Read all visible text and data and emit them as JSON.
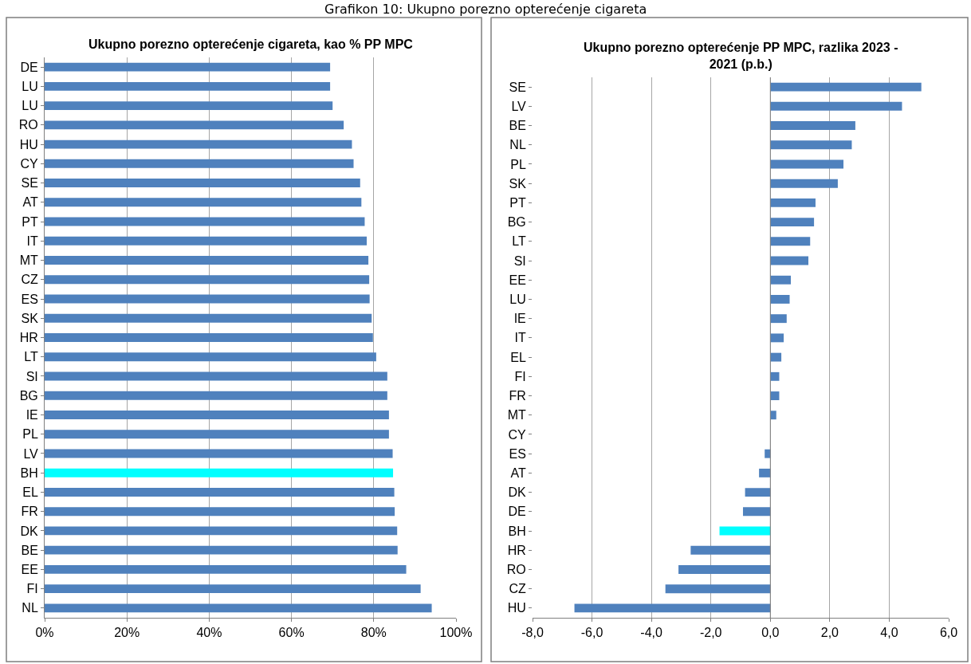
{
  "chart_data": [
    {
      "type": "bar",
      "orientation": "horizontal",
      "title": "Ukupno porezno opterećenje cigareta, kao % PP MPC",
      "annotations": [
        "Grafikon 10: Ukupno porezno opterećenje cigareta"
      ],
      "categories": [
        "DE",
        "LU",
        "LU",
        "RO",
        "HU",
        "CY",
        "SE",
        "AT",
        "PT",
        "IT",
        "MT",
        "CZ",
        "ES",
        "SK",
        "HR",
        "LT",
        "SI",
        "BG",
        "IE",
        "PL",
        "LV",
        "BH",
        "EL",
        "FR",
        "DK",
        "BE",
        "EE",
        "FI",
        "NL"
      ],
      "values": [
        69.4,
        69.4,
        70.0,
        72.7,
        74.7,
        75.1,
        76.7,
        77.0,
        77.8,
        78.3,
        78.7,
        78.9,
        79.0,
        79.5,
        79.8,
        80.6,
        83.3,
        83.3,
        83.7,
        83.7,
        84.6,
        84.7,
        85.0,
        85.1,
        85.7,
        85.8,
        87.9,
        91.4,
        94.1
      ],
      "colors": [
        "#4f81bd",
        "#4f81bd",
        "#4f81bd",
        "#4f81bd",
        "#4f81bd",
        "#4f81bd",
        "#4f81bd",
        "#4f81bd",
        "#4f81bd",
        "#4f81bd",
        "#4f81bd",
        "#4f81bd",
        "#4f81bd",
        "#4f81bd",
        "#4f81bd",
        "#4f81bd",
        "#4f81bd",
        "#4f81bd",
        "#4f81bd",
        "#4f81bd",
        "#4f81bd",
        "#00ffff",
        "#4f81bd",
        "#4f81bd",
        "#4f81bd",
        "#4f81bd",
        "#4f81bd",
        "#4f81bd",
        "#4f81bd"
      ],
      "xlim": [
        0,
        100
      ],
      "xticks": [
        {
          "value": 0,
          "label": "0%"
        },
        {
          "value": 20,
          "label": "20%"
        },
        {
          "value": 40,
          "label": "40%"
        },
        {
          "value": 60,
          "label": "60%"
        },
        {
          "value": 80,
          "label": "80%"
        },
        {
          "value": 100,
          "label": "100%"
        }
      ],
      "grid": "x"
    },
    {
      "type": "bar",
      "orientation": "horizontal",
      "title": "Ukupno porezno opterećenje PP MPC, razlika 2023 - 2021 (p.b.)",
      "categories": [
        "SE",
        "LV",
        "BE",
        "NL",
        "PL",
        "SK",
        "PT",
        "BG",
        "LT",
        "SI",
        "EE",
        "LU",
        "IE",
        "IT",
        "EL",
        "FI",
        "FR",
        "MT",
        "CY",
        "ES",
        "AT",
        "DK",
        "DE",
        "BH",
        "HR",
        "RO",
        "CZ",
        "HU"
      ],
      "values": [
        5.08,
        4.43,
        2.86,
        2.74,
        2.46,
        2.27,
        1.52,
        1.47,
        1.34,
        1.28,
        0.69,
        0.65,
        0.55,
        0.45,
        0.37,
        0.3,
        0.3,
        0.2,
        null,
        -0.19,
        -0.38,
        -0.85,
        -0.92,
        -1.71,
        -2.68,
        -3.09,
        -3.53,
        -6.59
      ],
      "colors": [
        "#4f81bd",
        "#4f81bd",
        "#4f81bd",
        "#4f81bd",
        "#4f81bd",
        "#4f81bd",
        "#4f81bd",
        "#4f81bd",
        "#4f81bd",
        "#4f81bd",
        "#4f81bd",
        "#4f81bd",
        "#4f81bd",
        "#4f81bd",
        "#4f81bd",
        "#4f81bd",
        "#4f81bd",
        "#4f81bd",
        "#4f81bd",
        "#4f81bd",
        "#4f81bd",
        "#4f81bd",
        "#4f81bd",
        "#00ffff",
        "#4f81bd",
        "#4f81bd",
        "#4f81bd",
        "#4f81bd"
      ],
      "xlim": [
        -8,
        6
      ],
      "xticks": [
        {
          "value": -8,
          "label": "-8,0"
        },
        {
          "value": -6,
          "label": "-6,0"
        },
        {
          "value": -4,
          "label": "-4,0"
        },
        {
          "value": -2,
          "label": "-2,0"
        },
        {
          "value": 0,
          "label": "0,0"
        },
        {
          "value": 2,
          "label": "2,0"
        },
        {
          "value": 4,
          "label": "4,0"
        },
        {
          "value": 6,
          "label": "6,0"
        }
      ],
      "grid": "x"
    }
  ]
}
